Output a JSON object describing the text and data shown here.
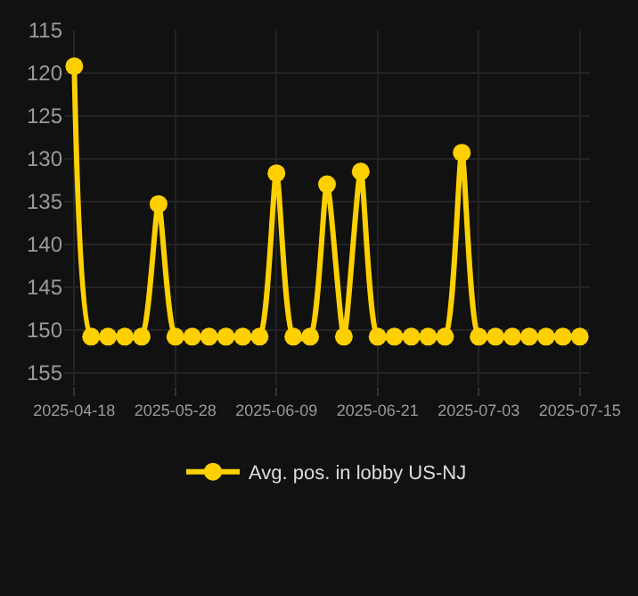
{
  "chart_data": {
    "type": "line",
    "categories": [
      "2025-04-18",
      null,
      null,
      null,
      null,
      null,
      "2025-05-28",
      null,
      null,
      null,
      null,
      null,
      "2025-06-09",
      null,
      null,
      null,
      null,
      null,
      "2025-06-21",
      null,
      null,
      null,
      null,
      null,
      "2025-07-03",
      null,
      null,
      null,
      null,
      null,
      "2025-07-15"
    ],
    "series": [
      {
        "name": "Avg. pos. in lobby US-NJ",
        "color": "#ffd000",
        "values": [
          119.2,
          150.8,
          150.8,
          150.8,
          150.8,
          135.3,
          150.8,
          150.8,
          150.8,
          150.8,
          150.8,
          150.8,
          131.7,
          150.8,
          150.8,
          133.0,
          150.8,
          131.5,
          150.8,
          150.8,
          150.8,
          150.8,
          150.8,
          129.3,
          150.8,
          150.8,
          150.8,
          150.8,
          150.8,
          150.8,
          150.8
        ]
      }
    ],
    "ylim": [
      156.5,
      115
    ],
    "yticks": [
      115,
      120,
      125,
      130,
      135,
      140,
      145,
      150,
      155
    ],
    "grid": true,
    "legend": "bottom",
    "marker": "circle",
    "line_style": "solid"
  }
}
